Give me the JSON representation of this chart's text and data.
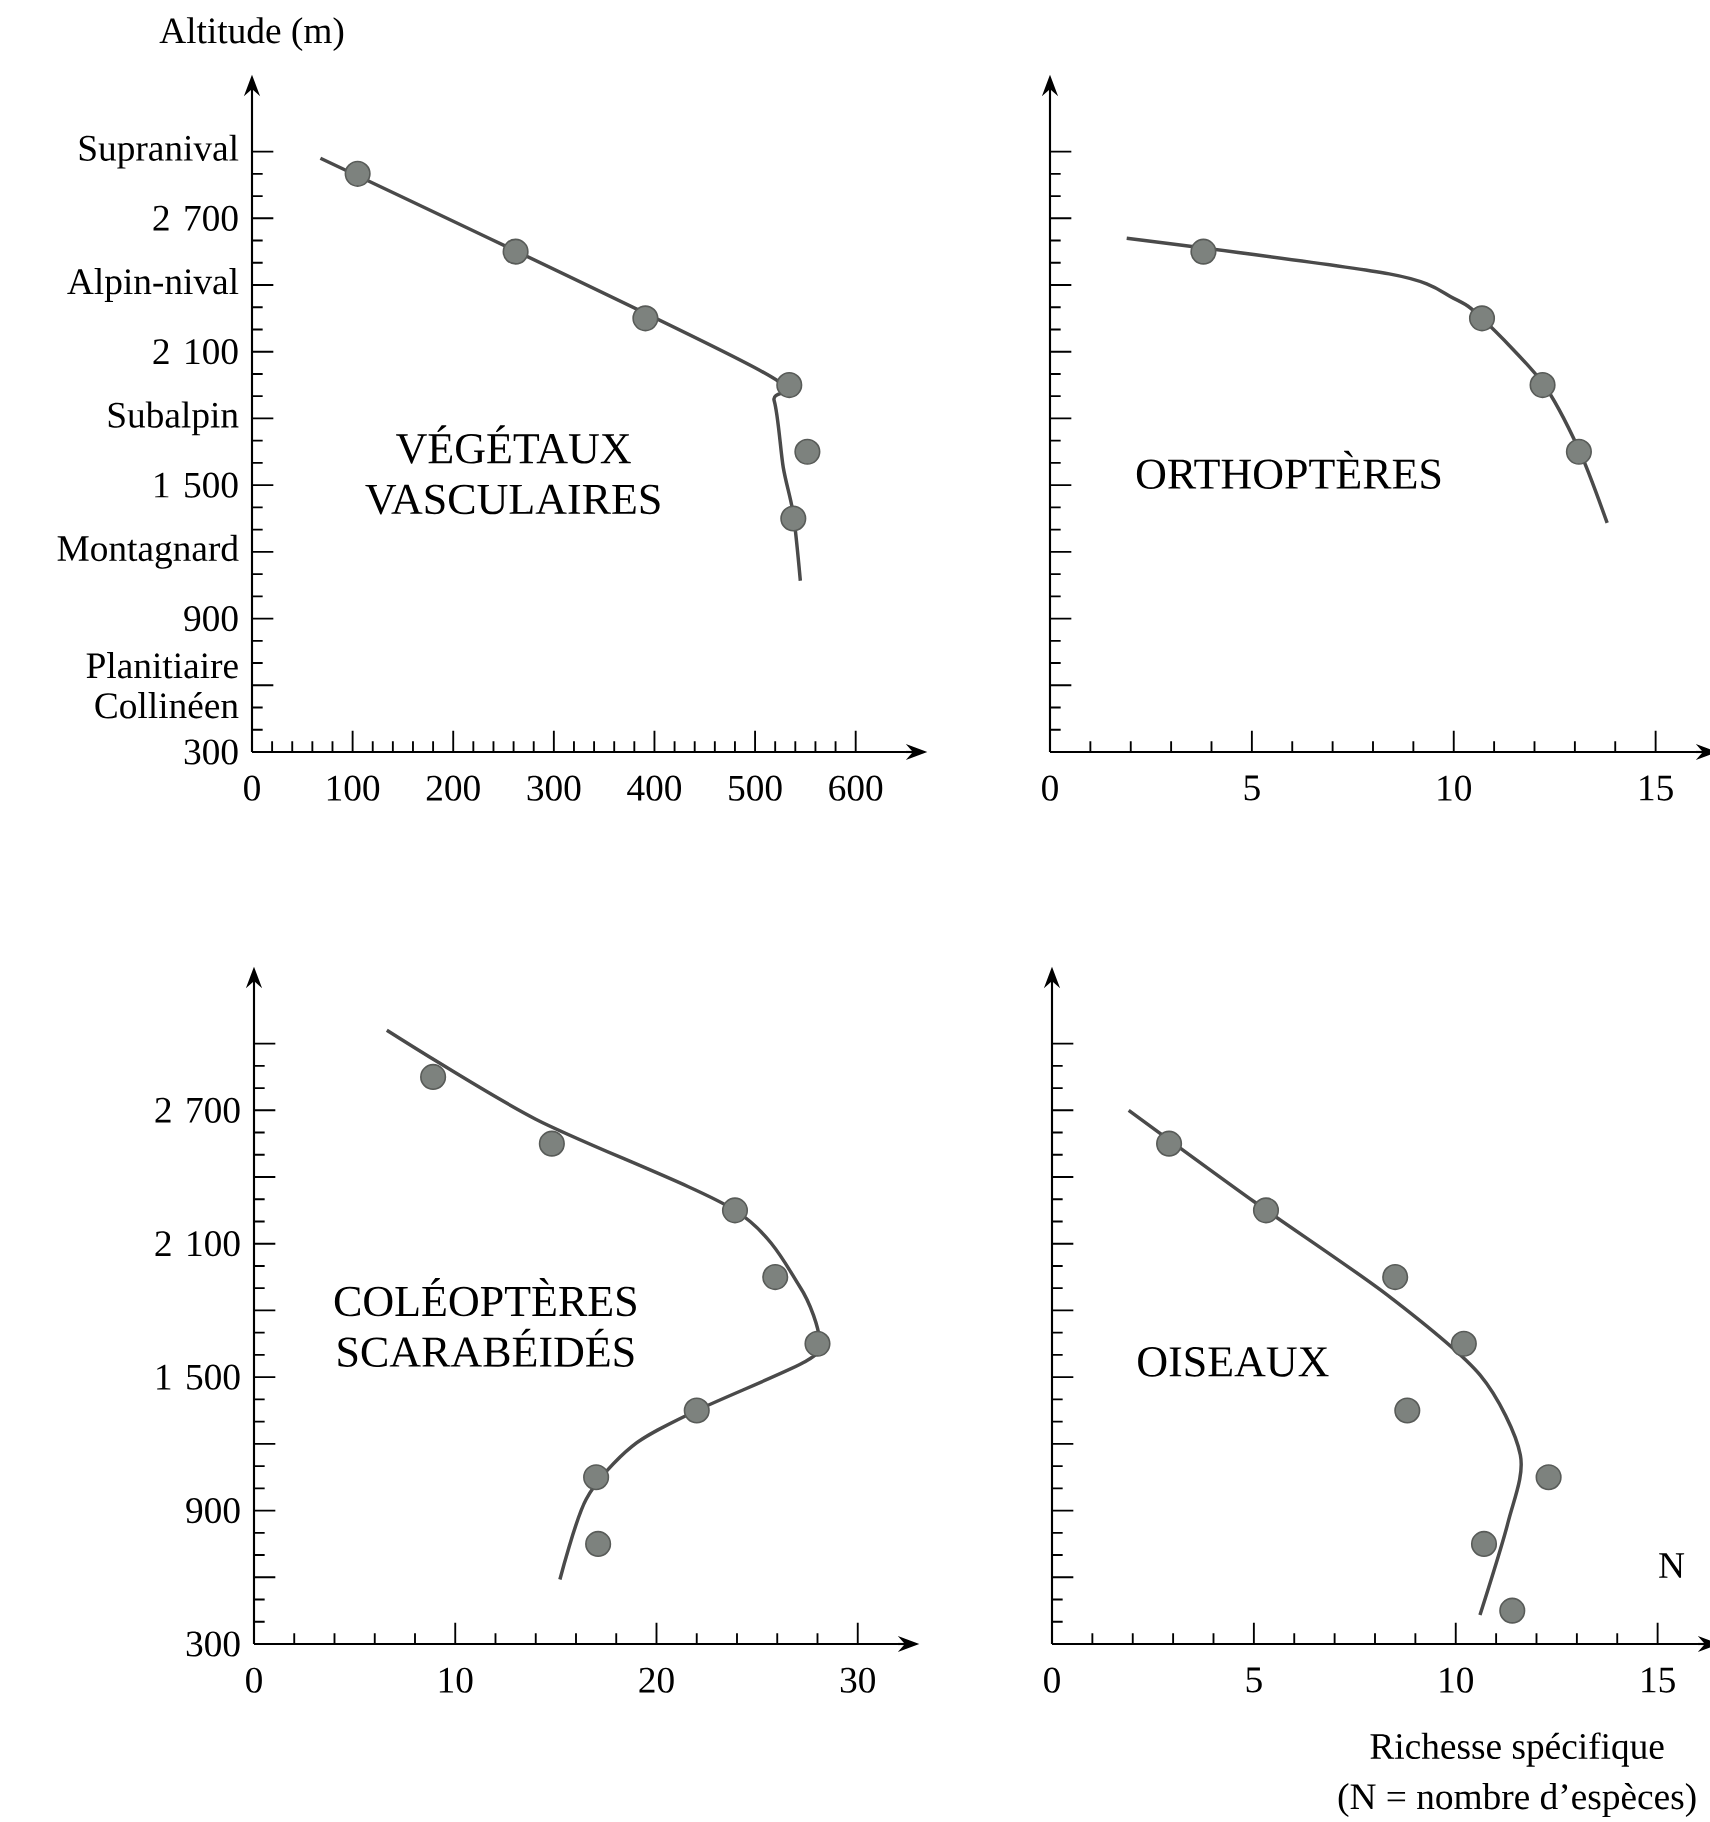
{
  "chart_data": [
    {
      "type": "scatter",
      "title": "VÉGÉTAUX VASCULAIRES",
      "ylabel": "Altitude (m)",
      "xlim": [
        0,
        650
      ],
      "xticks": [
        0,
        100,
        200,
        300,
        400,
        500,
        600
      ],
      "ylim": [
        300,
        3250
      ],
      "yticks": [
        300,
        {
          "value": 600,
          "label": "Planitiaire Collinéen"
        },
        900,
        {
          "value": 1200,
          "label": "Montagnard"
        },
        {
          "value": 1500,
          "label": "1 500"
        },
        {
          "value": 1800,
          "label": "Subalpin"
        },
        {
          "value": 2100,
          "label": "2 100"
        },
        {
          "value": 2400,
          "label": "Alpin-nival"
        },
        {
          "value": 2700,
          "label": "2 700"
        },
        {
          "value": 3000,
          "label": "Supranival"
        }
      ],
      "series": [
        {
          "marker": "circle",
          "color": "#7d827e",
          "x": [
            105,
            262,
            391,
            534,
            552,
            538
          ],
          "values": [
            2900,
            2550,
            2250,
            1950,
            1650,
            1350
          ]
        },
        {
          "type": "line",
          "marker": "none",
          "color": "#4a4a4a",
          "x": [
            68,
            499,
            519,
            528,
            538,
            545
          ],
          "values": [
            2970,
            2030,
            1880,
            1580,
            1370,
            1070
          ]
        }
      ]
    },
    {
      "type": "scatter",
      "title": "ORTHOPTÈRES",
      "tick_labels": "x",
      "xlim": [
        0,
        16
      ],
      "xticks": [
        0,
        5,
        10,
        15
      ],
      "ylim": [
        300,
        3250
      ],
      "yticks": [
        300,
        600,
        900,
        1200,
        1500,
        1800,
        2100,
        2400,
        2700,
        3000
      ],
      "series": [
        {
          "marker": "circle",
          "color": "#7d827e",
          "x": [
            3.8,
            10.7,
            12.2,
            13.1
          ],
          "values": [
            2550,
            2250,
            1950,
            1650
          ]
        },
        {
          "type": "line",
          "marker": "none",
          "color": "#4a4a4a",
          "x": [
            1.9,
            8.4,
            10.0,
            10.7,
            12.2,
            13.1,
            13.8
          ],
          "values": [
            2610,
            2450,
            2340,
            2250,
            1960,
            1660,
            1330
          ]
        }
      ]
    },
    {
      "type": "scatter",
      "title": "COLÉOPTÈRES SCARABÉIDÉS",
      "xlim": [
        0,
        32
      ],
      "xticks": [
        0,
        10,
        20,
        30
      ],
      "ylim": [
        300,
        3250
      ],
      "yticks": [
        300,
        {
          "value": 600,
          "label": null
        },
        900,
        {
          "value": 1200,
          "label": null
        },
        {
          "value": 1500,
          "label": "1 500"
        },
        {
          "value": 1800,
          "label": null
        },
        {
          "value": 2100,
          "label": "2 100"
        },
        {
          "value": 2400,
          "label": null
        },
        {
          "value": 2700,
          "label": "2 700"
        },
        {
          "value": 3000,
          "label": null
        }
      ],
      "series": [
        {
          "marker": "circle",
          "color": "#7d827e",
          "x": [
            8.9,
            14.8,
            23.9,
            25.9,
            28.0,
            22.0,
            17.0,
            17.1
          ],
          "values": [
            2850,
            2550,
            2250,
            1950,
            1650,
            1350,
            1050,
            750
          ]
        },
        {
          "type": "line",
          "marker": "none",
          "color": "#4a4a4a",
          "x": [
            6.6,
            14.0,
            23.9,
            27.1,
            28.1,
            27.4,
            22.0,
            18.8,
            16.5,
            15.2
          ],
          "values": [
            3060,
            2660,
            2250,
            1910,
            1670,
            1570,
            1350,
            1190,
            950,
            590
          ]
        }
      ]
    },
    {
      "type": "scatter",
      "title": "OISEAUX",
      "xlabel": "N",
      "tick_labels": "x",
      "xlim": [
        0,
        16
      ],
      "xticks": [
        0,
        5,
        10,
        15
      ],
      "ylim": [
        300,
        3250
      ],
      "yticks": [
        300,
        600,
        900,
        1200,
        1500,
        1800,
        2100,
        2400,
        2700,
        3000
      ],
      "annotations": [
        "Richesse spécifique",
        "(N = nombre d’espèces)"
      ],
      "series": [
        {
          "marker": "circle",
          "color": "#7d827e",
          "x": [
            2.9,
            5.3,
            8.5,
            10.2,
            8.8,
            12.3,
            10.7,
            11.4
          ],
          "values": [
            2550,
            2250,
            1950,
            1650,
            1350,
            1050,
            750,
            450
          ]
        },
        {
          "type": "line",
          "marker": "none",
          "color": "#4a4a4a",
          "x": [
            1.9,
            5.0,
            8.3,
            10.6,
            11.6,
            11.3,
            10.6
          ],
          "values": [
            2700,
            2290,
            1870,
            1510,
            1150,
            850,
            430
          ]
        }
      ]
    }
  ]
}
